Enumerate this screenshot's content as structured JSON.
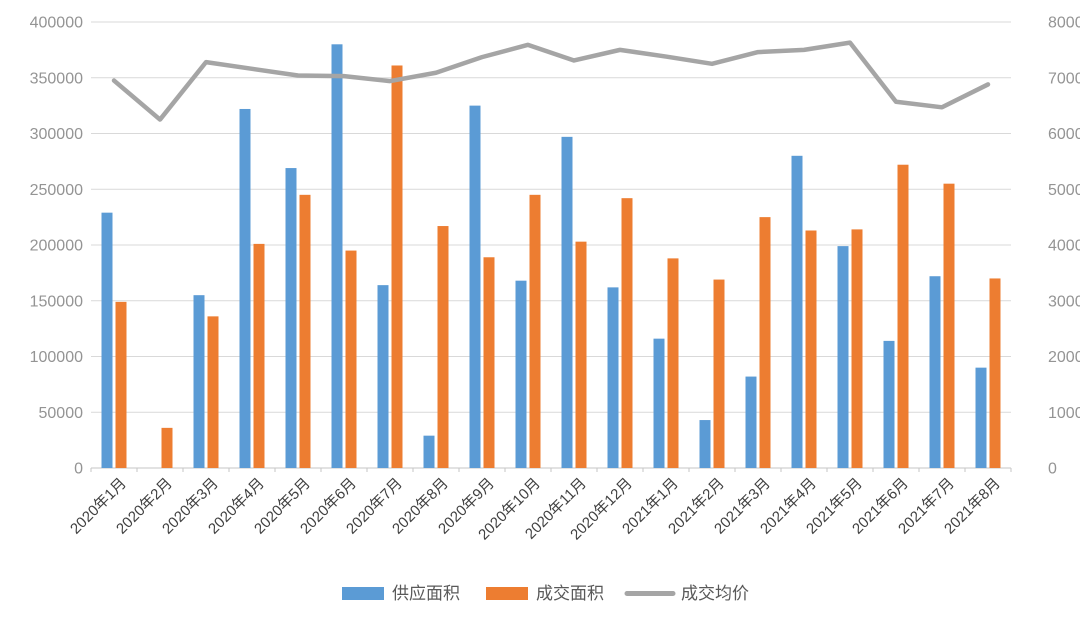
{
  "chart_data": {
    "type": "bar",
    "subtype": "combo-bar-line",
    "title": "",
    "categories": [
      "2020年1月",
      "2020年2月",
      "2020年3月",
      "2020年4月",
      "2020年5月",
      "2020年6月",
      "2020年7月",
      "2020年8月",
      "2020年9月",
      "2020年10月",
      "2020年11月",
      "2020年12月",
      "2021年1月",
      "2021年2月",
      "2021年3月",
      "2021年4月",
      "2021年5月",
      "2021年6月",
      "2021年7月",
      "2021年8月"
    ],
    "series": [
      {
        "name": "供应面积",
        "type": "bar",
        "axis": "left",
        "color": "#5B9BD5",
        "values": [
          229000,
          0,
          155000,
          322000,
          269000,
          380000,
          164000,
          29000,
          325000,
          168000,
          297000,
          162000,
          116000,
          43000,
          82000,
          280000,
          199000,
          114000,
          172000,
          90000
        ]
      },
      {
        "name": "成交面积",
        "type": "bar",
        "axis": "left",
        "color": "#ED7D31",
        "values": [
          149000,
          36000,
          136000,
          201000,
          245000,
          195000,
          361000,
          217000,
          189000,
          245000,
          203000,
          242000,
          188000,
          169000,
          225000,
          213000,
          214000,
          272000,
          255000,
          170000
        ]
      },
      {
        "name": "成交均价",
        "type": "line",
        "axis": "right",
        "color": "#A5A5A5",
        "values": [
          6950,
          6250,
          7280,
          7160,
          7040,
          7030,
          6940,
          7090,
          7370,
          7590,
          7310,
          7500,
          7380,
          7250,
          7460,
          7500,
          7630,
          6570,
          6470,
          6880
        ]
      }
    ],
    "left_axis": {
      "min": 0,
      "max": 400000,
      "step": 50000,
      "tick_labels": [
        "0",
        "50000",
        "100000",
        "150000",
        "200000",
        "250000",
        "300000",
        "350000",
        "400000"
      ]
    },
    "right_axis": {
      "min": 0,
      "max": 8000,
      "step": 1000,
      "tick_labels": [
        "0",
        "1000",
        "2000",
        "3000",
        "4000",
        "5000",
        "6000",
        "7000",
        "8000"
      ]
    },
    "grid": true,
    "legend_position": "bottom",
    "colors": {
      "background": "#ffffff",
      "gridline": "#D9D9D9",
      "axis_line": "#C6C6C6",
      "axis_tick_text": "#949494",
      "x_label_text": "#404040",
      "legend_text": "#595959"
    }
  }
}
